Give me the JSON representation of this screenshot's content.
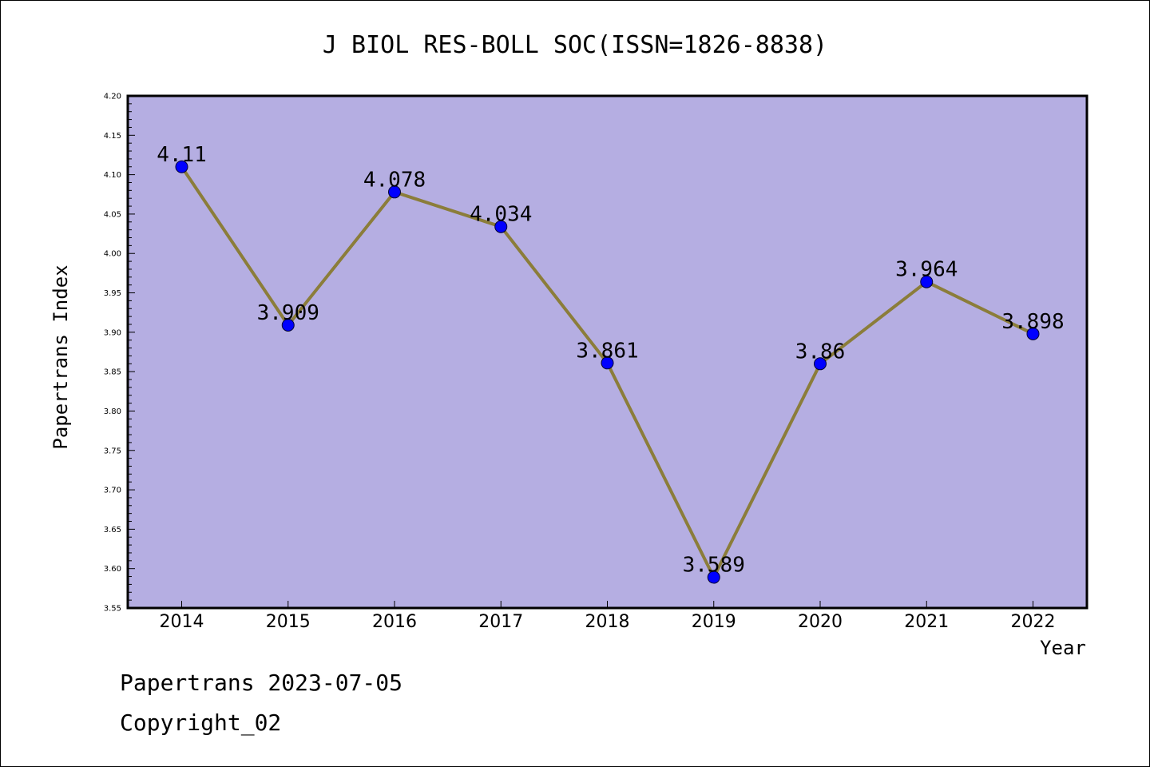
{
  "chart_data": {
    "type": "line",
    "title": "J BIOL RES-BOLL SOC(ISSN=1826-8838)",
    "xlabel": "Year",
    "ylabel": "Papertrans Index",
    "categories": [
      "2014",
      "2015",
      "2016",
      "2017",
      "2018",
      "2019",
      "2020",
      "2021",
      "2022"
    ],
    "values": [
      4.11,
      3.909,
      4.078,
      4.034,
      3.861,
      3.589,
      3.86,
      3.964,
      3.898
    ],
    "value_labels": [
      "4.11",
      "3.909",
      "4.078",
      "4.034",
      "3.861",
      "3.589",
      "3.86",
      "3.964",
      "3.898"
    ],
    "ylim": [
      3.55,
      4.2
    ],
    "yticks": [
      "3.55",
      "3.60",
      "3.65",
      "3.70",
      "3.75",
      "3.80",
      "3.85",
      "3.90",
      "3.95",
      "4.00",
      "4.05",
      "4.10",
      "4.15",
      "4.20"
    ],
    "grid": false,
    "plot_background": "#b5aee2",
    "line_color": "#8b7d3a",
    "marker_color": "#0000ff"
  },
  "footer": {
    "line1": "Papertrans 2023-07-05",
    "line2": "Copyright_02"
  }
}
